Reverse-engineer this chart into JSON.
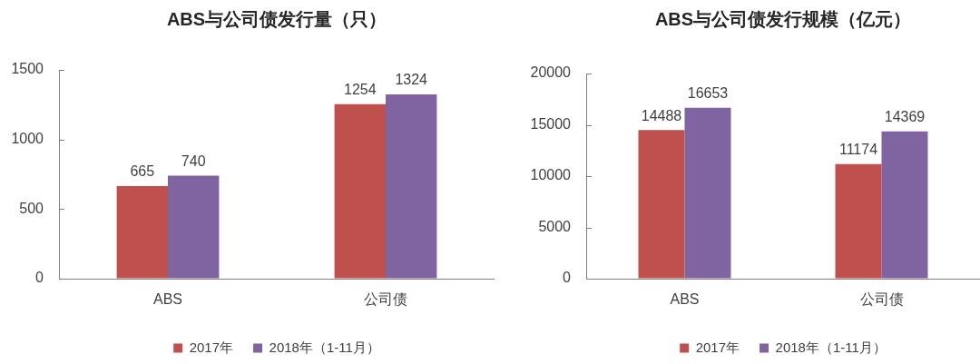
{
  "chart_data": [
    {
      "type": "bar",
      "title": "ABS与公司债发行量（只）",
      "categories": [
        "ABS",
        "公司债"
      ],
      "series": [
        {
          "name": "2017年",
          "color": "#c0504d",
          "values": [
            665,
            1254
          ]
        },
        {
          "name": "2018年（1-11月）",
          "color": "#8064a2",
          "values": [
            740,
            1324
          ]
        }
      ],
      "ylim": [
        0,
        1500
      ],
      "yticks": [
        0,
        500,
        1000,
        1500
      ],
      "grid": false,
      "legend": "bottom",
      "data_labels": true
    },
    {
      "type": "bar",
      "title": "ABS与公司债发行规模（亿元）",
      "categories": [
        "ABS",
        "公司债"
      ],
      "series": [
        {
          "name": "2017年",
          "color": "#c0504d",
          "values": [
            14488,
            11174
          ]
        },
        {
          "name": "2018年（1-11月）",
          "color": "#8064a2",
          "values": [
            16653,
            14369
          ]
        }
      ],
      "ylim": [
        0,
        20000
      ],
      "yticks": [
        0,
        5000,
        10000,
        15000,
        20000
      ],
      "grid": false,
      "legend": "bottom",
      "data_labels": true
    }
  ]
}
